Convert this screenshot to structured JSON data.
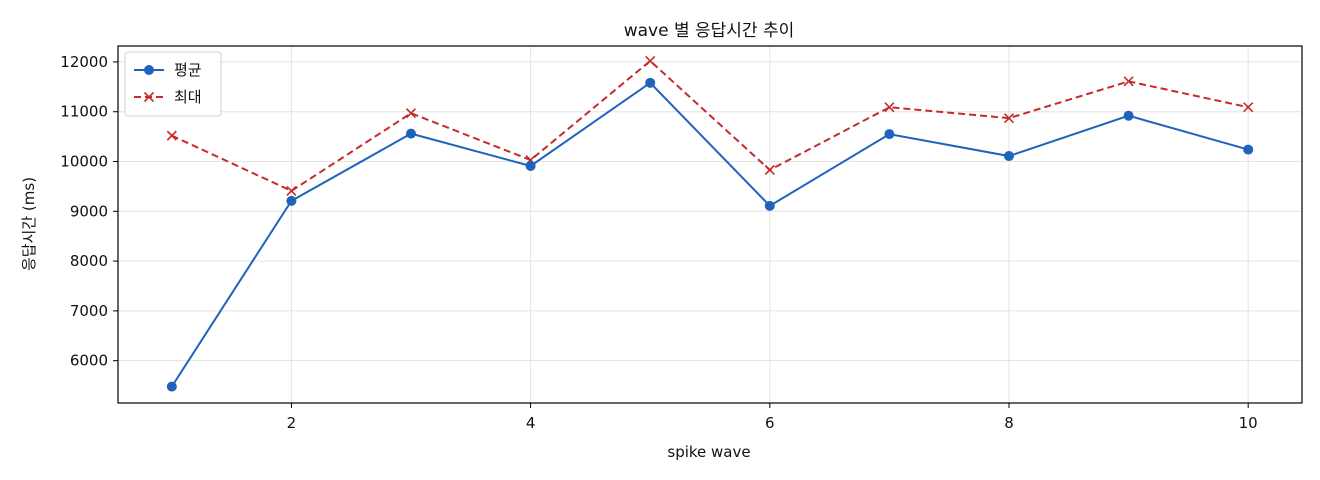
{
  "chart_data": {
    "type": "line",
    "title": "wave 별 응답시간 추이",
    "xlabel": "spike wave",
    "ylabel": "응답시간 (ms)",
    "x": [
      1,
      2,
      3,
      4,
      5,
      6,
      7,
      8,
      9,
      10
    ],
    "xticks": [
      2,
      4,
      6,
      8,
      10
    ],
    "yticks": [
      6000,
      7000,
      8000,
      9000,
      10000,
      11000,
      12000
    ],
    "xlim": [
      0.55,
      10.45
    ],
    "ylim": [
      5150,
      12320
    ],
    "grid": true,
    "legend_position": "top-left",
    "series": [
      {
        "name": "평균",
        "color": "#1f63bd",
        "marker": "circle",
        "line_style": "solid",
        "values": [
          5480,
          9210,
          10560,
          9910,
          11580,
          9110,
          10550,
          10110,
          10920,
          10240
        ]
      },
      {
        "name": "최대",
        "color": "#c62b2b",
        "marker": "x",
        "line_style": "dashed",
        "values": [
          10520,
          9410,
          10970,
          10030,
          12020,
          9830,
          11090,
          10870,
          11610,
          11090
        ]
      }
    ]
  }
}
